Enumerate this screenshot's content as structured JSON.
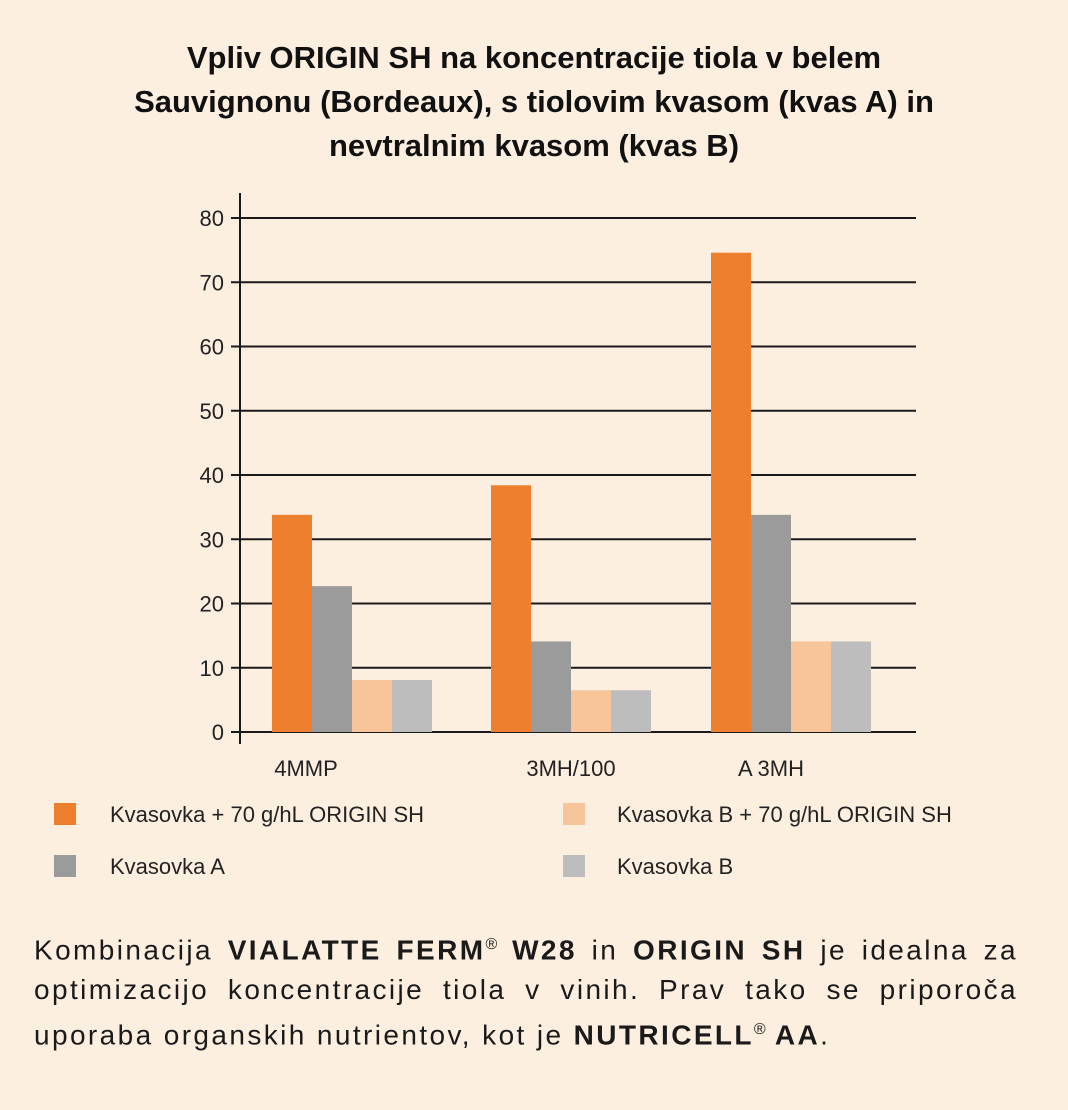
{
  "title": {
    "line1": "Vpliv ORIGIN SH na koncentracije tiola v belem",
    "line2": "Sauvignonu (Bordeaux), s tiolovim kvasom (kvas A) in",
    "line3": "nevtralnim kvasom (kvas B)"
  },
  "chart_data": {
    "type": "bar",
    "categories": [
      "4MMP",
      "3MH/100",
      "A 3MH"
    ],
    "series": [
      {
        "name": "Kvasovka + 70 g/hL ORIGIN SH",
        "color": "#ee7f2e",
        "values": [
          33.8,
          38.4,
          74.6
        ]
      },
      {
        "name": "Kvasovka A",
        "color": "#9b9b9b",
        "values": [
          22.7,
          14.1,
          33.8
        ]
      },
      {
        "name": "Kvasovka B + 70 g/hL ORIGIN SH",
        "color": "#f8c49a",
        "values": [
          8.1,
          6.5,
          14.1
        ]
      },
      {
        "name": "Kvasovka B",
        "color": "#bdbdbd",
        "values": [
          8.1,
          6.5,
          14.1
        ]
      }
    ],
    "ylim": [
      0,
      80
    ],
    "yticks": [
      "0",
      "10",
      "20",
      "30",
      "40",
      "50",
      "60",
      "70",
      "80"
    ],
    "grid": true,
    "legend_position": "bottom"
  },
  "footer": {
    "t1": "Kombinacija ",
    "b1": "VIALATTE FERM",
    "reg1": "®",
    "b2": " W28",
    "t2": " in ",
    "b3": "ORIGIN SH",
    "t3": " je idealna za optimizacijo koncentracije tiola v vinih. Prav tako se priporoča uporaba organskih nutrientov, kot je ",
    "b4": "NUTRICELL",
    "reg2": "®",
    "b5": " AA",
    "t4": "."
  }
}
